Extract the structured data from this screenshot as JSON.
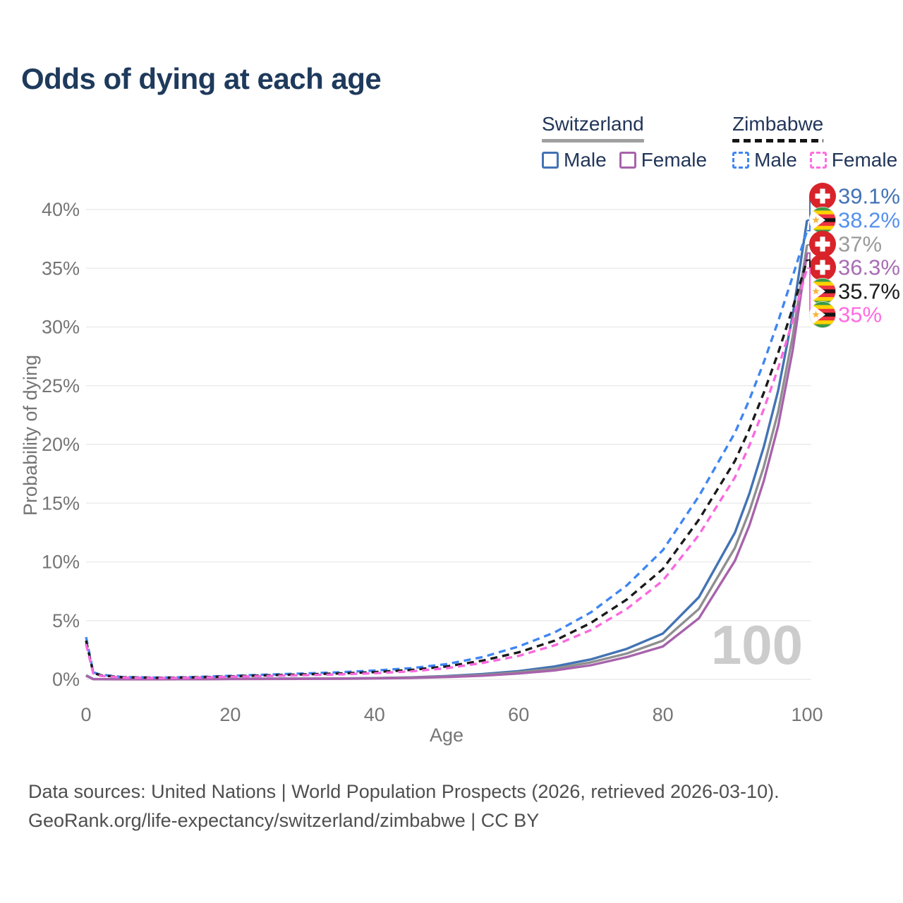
{
  "header": {
    "title": "Odds of dying at each age"
  },
  "legend": {
    "groups": [
      {
        "name": "Switzerland",
        "line_style": "solid",
        "line_color": "#a0a0a0",
        "items": [
          {
            "label": "Male",
            "color": "#4273b4",
            "style": "solid"
          },
          {
            "label": "Female",
            "color": "#a763ab",
            "style": "solid"
          }
        ]
      },
      {
        "name": "Zimbabwe",
        "line_style": "dashed",
        "line_color": "#151515",
        "items": [
          {
            "label": "Male",
            "color": "#3f86f2",
            "style": "dashed"
          },
          {
            "label": "Female",
            "color": "#ff6ce2",
            "style": "dashed"
          }
        ]
      }
    ]
  },
  "chart_data": {
    "type": "line",
    "title": "Odds of dying at each age",
    "xlabel": "Age",
    "ylabel": "Probability of dying",
    "xlim": [
      0,
      100
    ],
    "ylim": [
      0,
      40
    ],
    "xticks": [
      0,
      20,
      40,
      60,
      80,
      100
    ],
    "yticks": [
      0,
      5,
      10,
      15,
      20,
      25,
      30,
      35,
      40
    ],
    "ytick_suffix": "%",
    "grid": true,
    "legend_position": "top-right",
    "watermark": "100",
    "x": [
      0,
      1,
      2,
      5,
      10,
      15,
      20,
      25,
      30,
      35,
      40,
      45,
      50,
      55,
      60,
      65,
      70,
      75,
      80,
      85,
      90,
      92,
      94,
      96,
      98,
      100
    ],
    "series": [
      {
        "id": "switzerland-male",
        "name": "Switzerland Male",
        "country": "Switzerland",
        "sex": "Male",
        "color": "#4273b4",
        "label_color": "#4273b4",
        "dash": "solid",
        "flag": "switzerland",
        "end_label": "39.1%",
        "end_value": 39.1,
        "values": [
          0.35,
          0.03,
          0.02,
          0.01,
          0.01,
          0.02,
          0.05,
          0.06,
          0.07,
          0.08,
          0.11,
          0.17,
          0.28,
          0.45,
          0.7,
          1.1,
          1.7,
          2.6,
          3.9,
          7.0,
          12.5,
          15.8,
          19.8,
          24.6,
          31.0,
          39.1
        ]
      },
      {
        "id": "switzerland-both",
        "name": "Switzerland Both sexes",
        "country": "Switzerland",
        "sex": "Both",
        "color": "#8f8f8f",
        "label_color": "#9b9b9b",
        "dash": "solid",
        "flag": "switzerland",
        "end_label": "37%",
        "end_value": 37.0,
        "values": [
          0.33,
          0.025,
          0.018,
          0.01,
          0.01,
          0.018,
          0.04,
          0.05,
          0.06,
          0.07,
          0.1,
          0.15,
          0.24,
          0.38,
          0.6,
          0.92,
          1.45,
          2.2,
          3.3,
          6.0,
          11.2,
          14.3,
          18.1,
          22.8,
          29.2,
          37.0
        ]
      },
      {
        "id": "switzerland-female",
        "name": "Switzerland Female",
        "country": "Switzerland",
        "sex": "Female",
        "color": "#a763ab",
        "label_color": "#a86db4",
        "dash": "solid",
        "flag": "switzerland",
        "end_label": "36.3%",
        "end_value": 36.3,
        "values": [
          0.3,
          0.02,
          0.015,
          0.008,
          0.008,
          0.015,
          0.03,
          0.035,
          0.04,
          0.05,
          0.08,
          0.12,
          0.2,
          0.31,
          0.5,
          0.76,
          1.2,
          1.9,
          2.8,
          5.2,
          10.1,
          13.1,
          16.9,
          21.6,
          28.0,
          36.3
        ]
      },
      {
        "id": "zimbabwe-male",
        "name": "Zimbabwe Male",
        "country": "Zimbabwe",
        "sex": "Male",
        "color": "#3f86f2",
        "label_color": "#5590ee",
        "dash": "dashed",
        "flag": "zimbabwe",
        "end_label": "38.2%",
        "end_value": 38.2,
        "values": [
          3.6,
          0.6,
          0.4,
          0.2,
          0.15,
          0.2,
          0.3,
          0.4,
          0.5,
          0.6,
          0.75,
          0.95,
          1.3,
          1.9,
          2.8,
          4.0,
          5.7,
          8.0,
          11.0,
          15.6,
          21.0,
          23.8,
          27.0,
          30.5,
          34.3,
          38.2
        ]
      },
      {
        "id": "zimbabwe-both",
        "name": "Zimbabwe Both sexes",
        "country": "Zimbabwe",
        "sex": "Both",
        "color": "#1a1a1a",
        "label_color": "#1c1c1c",
        "dash": "dashed",
        "flag": "zimbabwe",
        "end_label": "35.7%",
        "end_value": 35.7,
        "values": [
          3.3,
          0.55,
          0.35,
          0.18,
          0.13,
          0.17,
          0.26,
          0.34,
          0.42,
          0.5,
          0.62,
          0.8,
          1.1,
          1.6,
          2.3,
          3.3,
          4.8,
          6.8,
          9.4,
          13.6,
          18.6,
          21.3,
          24.4,
          27.8,
          31.6,
          35.7
        ]
      },
      {
        "id": "zimbabwe-female",
        "name": "Zimbabwe Female",
        "country": "Zimbabwe",
        "sex": "Female",
        "color": "#f969de",
        "label_color": "#ff6ce2",
        "dash": "dashed",
        "flag": "zimbabwe",
        "end_label": "35%",
        "end_value": 35.0,
        "values": [
          3.0,
          0.5,
          0.3,
          0.15,
          0.11,
          0.14,
          0.22,
          0.28,
          0.35,
          0.42,
          0.52,
          0.68,
          0.95,
          1.4,
          2.0,
          2.9,
          4.2,
          6.0,
          8.4,
          12.3,
          17.2,
          19.9,
          23.0,
          26.5,
          30.5,
          35.0
        ]
      }
    ]
  },
  "icons": {
    "swiss_flag": {
      "background": "#d8232a",
      "cross": "#ffffff"
    },
    "zimbabwe_flag": {
      "green": "#3a9948",
      "yellow": "#ffd200",
      "red": "#ef3340",
      "black": "#141414",
      "triangle": "#ffffff",
      "star": "#f5b63e"
    }
  },
  "colors": {
    "title": "#1e3a5c",
    "axis_text": "#757575",
    "grid": "#ececec",
    "watermark": "#cccccc"
  },
  "footer": {
    "line1": "Data sources: United Nations | World Population Prospects (2026, retrieved 2026-03-10).",
    "line2": "GeoRank.org/life-expectancy/switzerland/zimbabwe | CC BY"
  }
}
